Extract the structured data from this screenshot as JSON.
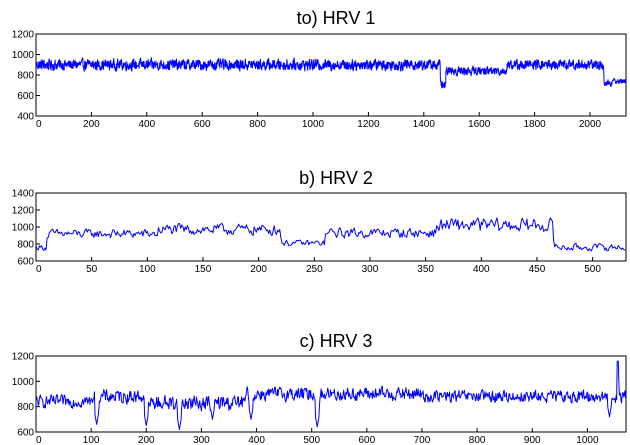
{
  "chart_data": [
    {
      "type": "line",
      "title": "to) HRV 1",
      "xlim": [
        0,
        2130
      ],
      "ylim": [
        400,
        1200
      ],
      "xticks": [
        "0",
        "200",
        "400",
        "600",
        "800",
        "1000",
        "1200",
        "1400",
        "1600",
        "1800",
        "2000"
      ],
      "yticks": [
        "400",
        "600",
        "800",
        "1000",
        "1200"
      ],
      "series": [
        {
          "color": "#0000ff",
          "n": 2130,
          "segments": [
            {
              "from": 0,
              "to": 1460,
              "level": 900,
              "amplitude": 90
            },
            {
              "from": 1460,
              "to": 1480,
              "level": 700,
              "amplitude": 70
            },
            {
              "from": 1480,
              "to": 1700,
              "level": 840,
              "amplitude": 70
            },
            {
              "from": 1700,
              "to": 2050,
              "level": 900,
              "amplitude": 80
            },
            {
              "from": 2050,
              "to": 2080,
              "level": 720,
              "amplitude": 60
            },
            {
              "from": 2080,
              "to": 2130,
              "level": 740,
              "amplitude": 40
            }
          ]
        }
      ],
      "grid": false
    },
    {
      "type": "line",
      "title": "b) HRV 2",
      "xlim": [
        0,
        530
      ],
      "ylim": [
        600,
        1400
      ],
      "xticks": [
        "0",
        "50",
        "100",
        "150",
        "200",
        "250",
        "300",
        "350",
        "400",
        "450",
        "500"
      ],
      "yticks": [
        "600",
        "800",
        "1000",
        "1200",
        "1400"
      ],
      "series": [
        {
          "color": "#0000ff",
          "n": 530,
          "segments": [
            {
              "from": 0,
              "to": 10,
              "level": 760,
              "amplitude": 60
            },
            {
              "from": 10,
              "to": 110,
              "level": 920,
              "amplitude": 90
            },
            {
              "from": 110,
              "to": 220,
              "level": 970,
              "amplitude": 110
            },
            {
              "from": 220,
              "to": 260,
              "level": 810,
              "amplitude": 60
            },
            {
              "from": 260,
              "to": 360,
              "level": 930,
              "amplitude": 100
            },
            {
              "from": 360,
              "to": 465,
              "level": 1020,
              "amplitude": 140
            },
            {
              "from": 465,
              "to": 530,
              "level": 760,
              "amplitude": 70
            }
          ]
        }
      ],
      "grid": false
    },
    {
      "type": "line",
      "title": "c) HRV 3",
      "xlim": [
        0,
        1070
      ],
      "ylim": [
        600,
        1200
      ],
      "xticks": [
        "0",
        "100",
        "200",
        "300",
        "400",
        "500",
        "600",
        "700",
        "800",
        "900",
        "1000"
      ],
      "yticks": [
        "600",
        "800",
        "1000",
        "1200"
      ],
      "series": [
        {
          "color": "#0000ff",
          "n": 1070,
          "segments": [
            {
              "from": 0,
              "to": 100,
              "level": 840,
              "amplitude": 80
            },
            {
              "from": 100,
              "to": 200,
              "level": 880,
              "amplitude": 90
            },
            {
              "from": 200,
              "to": 380,
              "level": 830,
              "amplitude": 100
            },
            {
              "from": 380,
              "to": 700,
              "level": 900,
              "amplitude": 90
            },
            {
              "from": 700,
              "to": 1070,
              "level": 880,
              "amplitude": 80
            }
          ],
          "dips": [
            {
              "x": 110,
              "y": 660
            },
            {
              "x": 200,
              "y": 650
            },
            {
              "x": 260,
              "y": 620
            },
            {
              "x": 320,
              "y": 700
            },
            {
              "x": 390,
              "y": 700
            },
            {
              "x": 510,
              "y": 640
            },
            {
              "x": 1040,
              "y": 720
            }
          ],
          "peaks": [
            {
              "x": 1055,
              "y": 1160
            }
          ]
        }
      ],
      "grid": false
    }
  ]
}
